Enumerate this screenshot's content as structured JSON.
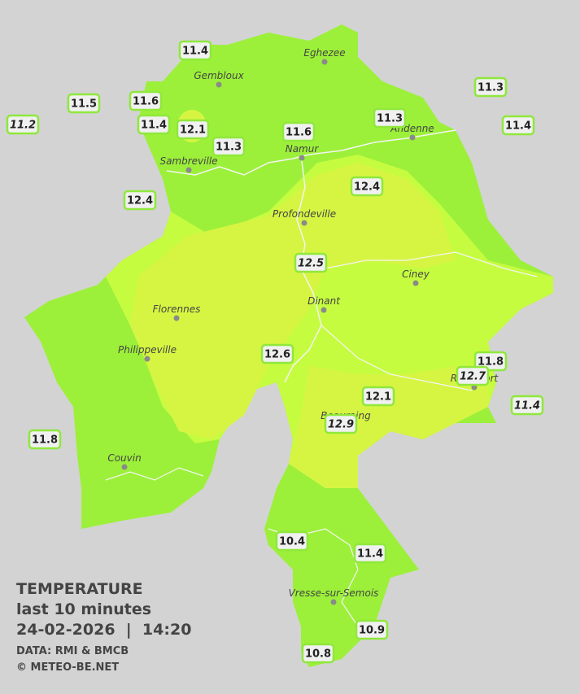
{
  "title": "TEMPERATURE",
  "subtitle": "last 10 minutes",
  "datetime": "24-02-2026  |  14:20",
  "source": "DATA: RMI & BMCB",
  "copyright": "© METEO-BE.NET",
  "cities": [
    "Eghezee",
    "Gembloux",
    "Andenne",
    "Namur",
    "Sambreville",
    "Profondeville",
    "Ciney",
    "Dinant",
    "Florennes",
    "Philippeville",
    "Beauraing",
    "Rochefort",
    "Couvin",
    "Vresse-sur-Semois"
  ],
  "stations": [
    {
      "value": 11.4,
      "italic": false
    },
    {
      "value": 11.5,
      "italic": false
    },
    {
      "value": 11.2,
      "italic": true
    },
    {
      "value": 11.6,
      "italic": false
    },
    {
      "value": 11.4,
      "italic": false
    },
    {
      "value": 12.1,
      "italic": false
    },
    {
      "value": 11.3,
      "italic": false
    },
    {
      "value": 11.6,
      "italic": false
    },
    {
      "value": 11.3,
      "italic": false
    },
    {
      "value": 11.3,
      "italic": false
    },
    {
      "value": 11.4,
      "italic": false
    },
    {
      "value": 12.4,
      "italic": false
    },
    {
      "value": 12.4,
      "italic": false
    },
    {
      "value": 12.5,
      "italic": true
    },
    {
      "value": 12.6,
      "italic": false
    },
    {
      "value": 11.8,
      "italic": false
    },
    {
      "value": 12.7,
      "italic": true
    },
    {
      "value": 12.1,
      "italic": false
    },
    {
      "value": 12.9,
      "italic": true
    },
    {
      "value": 11.4,
      "italic": true
    },
    {
      "value": 11.8,
      "italic": false
    },
    {
      "value": 10.4,
      "italic": false
    },
    {
      "value": 11.4,
      "italic": false
    },
    {
      "value": 10.9,
      "italic": false
    },
    {
      "value": 10.8,
      "italic": false
    }
  ]
}
